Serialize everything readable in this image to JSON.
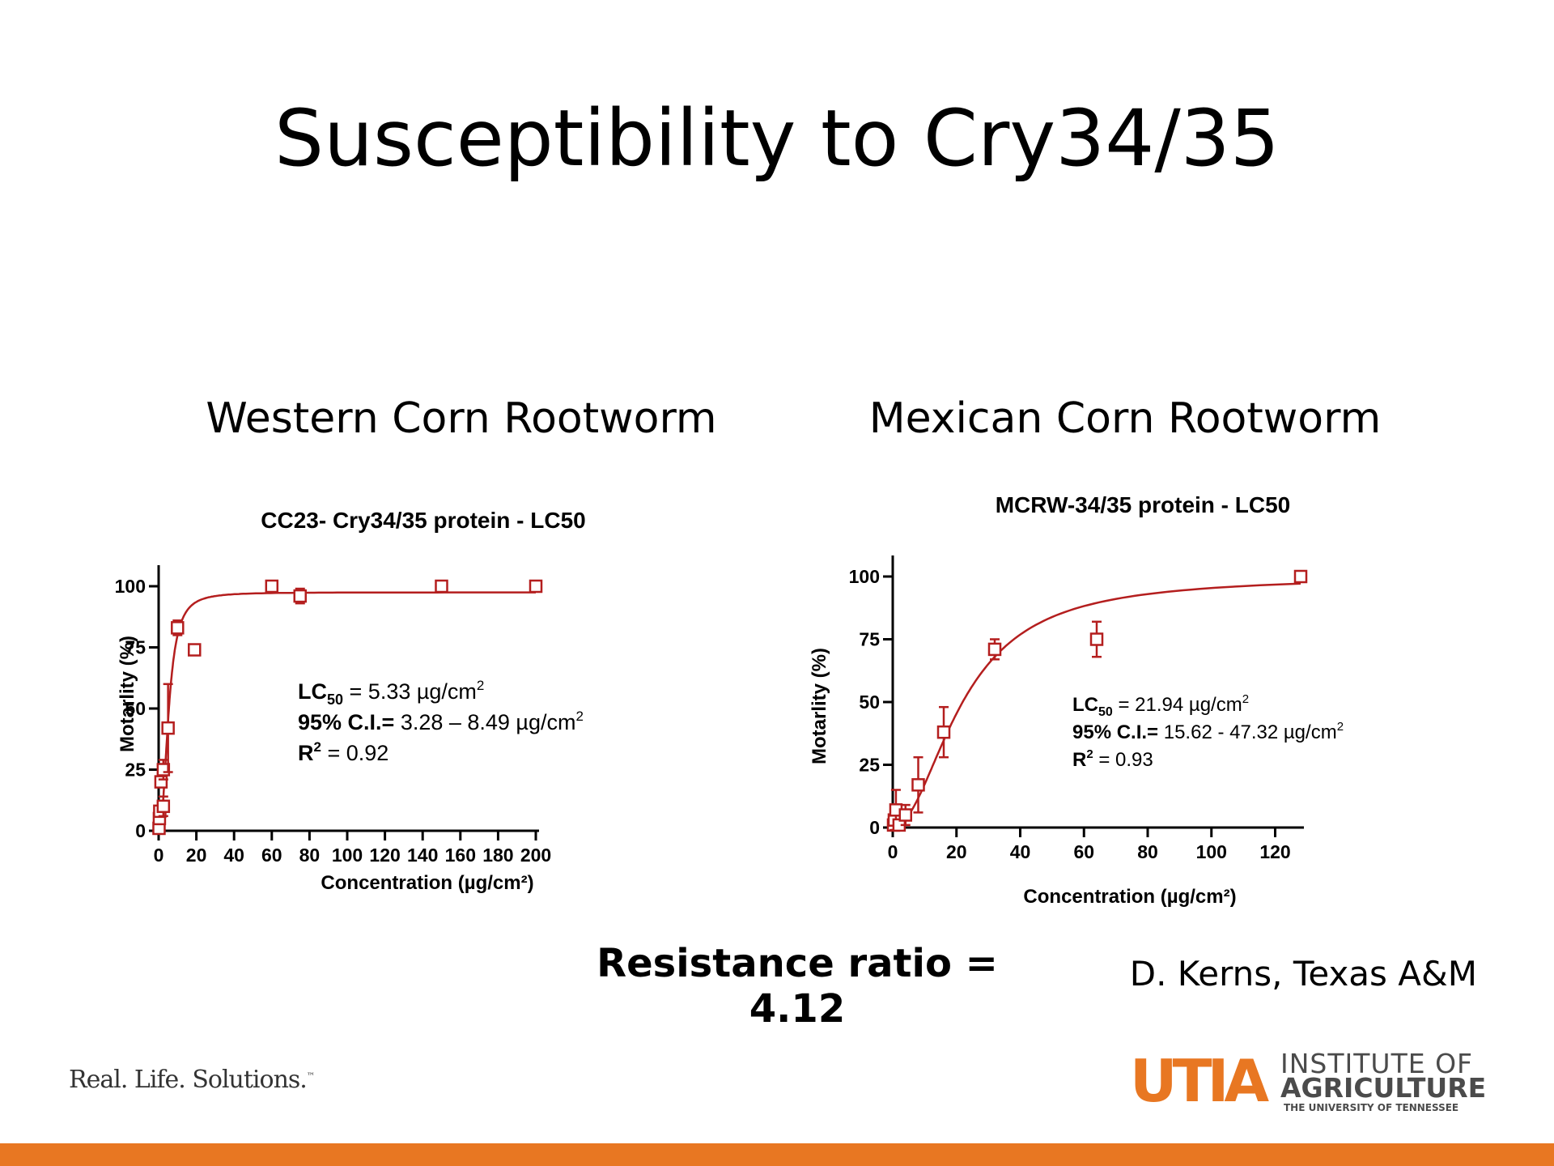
{
  "slide": {
    "title": "Susceptibility to Cry34/35",
    "left_subtitle": "Western Corn Rootworm",
    "right_subtitle": "Mexican Corn Rootworm",
    "resistance_ratio": "Resistance ratio = 4.12",
    "credit": "D. Kerns, Texas A&M",
    "tagline": "Real. Life. Solutions.",
    "tagline_mark": "™"
  },
  "logo": {
    "mark": "UTIA",
    "line1": "INSTITUTE OF",
    "line2": "AGRICULTURE",
    "line3": "THE UNIVERSITY OF TENNESSEE"
  },
  "colors": {
    "data_red": "#b41e1e",
    "brand_orange": "#e87722",
    "logo_gray": "#4b4b4b"
  },
  "chart_data": [
    {
      "type": "scatter",
      "title": "CC23- Cry34/35 protein - LC50",
      "xlabel": "Concentration (µg/cm²)",
      "ylabel": "Motarlity (%)",
      "xlim": [
        0,
        200
      ],
      "ylim": [
        0,
        100
      ],
      "xticks": [
        0,
        20,
        40,
        60,
        80,
        100,
        120,
        140,
        160,
        180,
        200
      ],
      "yticks": [
        0,
        25,
        50,
        75,
        100
      ],
      "points": [
        {
          "x": 0.2,
          "y": 1,
          "err": 0
        },
        {
          "x": 0.4,
          "y": 5,
          "err": 0
        },
        {
          "x": 0.6,
          "y": 8,
          "err": 0
        },
        {
          "x": 1.25,
          "y": 20,
          "err": 0
        },
        {
          "x": 2.5,
          "y": 10,
          "err": 4
        },
        {
          "x": 2.5,
          "y": 25,
          "err": 4
        },
        {
          "x": 5,
          "y": 42,
          "err": 18
        },
        {
          "x": 10,
          "y": 83,
          "err": 3
        },
        {
          "x": 19,
          "y": 74,
          "err": 0
        },
        {
          "x": 60,
          "y": 100,
          "err": 0
        },
        {
          "x": 75,
          "y": 96,
          "err": 3
        },
        {
          "x": 150,
          "y": 100,
          "err": 0
        },
        {
          "x": 200,
          "y": 100,
          "err": 0
        }
      ],
      "fit": {
        "model": "log-logistic",
        "top": 97.5,
        "ec50": 5.33,
        "hill": 2.4,
        "x_range": [
          0.05,
          200
        ]
      },
      "stats": {
        "lc_label": "LC",
        "lc_sub": "50",
        "lc_value": " = 5.33 µg/cm",
        "ci_label": "95% C.I.=",
        "ci_value": " 3.28 – 8.49 µg/cm",
        "r2_label": "R",
        "r2_value": " = 0.92",
        "sup": "2"
      }
    },
    {
      "type": "scatter",
      "title": "MCRW-34/35 protein - LC50",
      "xlabel": "Concentration (µg/cm²)",
      "ylabel": "Motarlity (%)",
      "xlim": [
        0,
        128
      ],
      "ylim": [
        0,
        100
      ],
      "xticks": [
        0,
        20,
        40,
        60,
        80,
        100,
        120
      ],
      "yticks": [
        0,
        25,
        50,
        75,
        100
      ],
      "points": [
        {
          "x": 0.25,
          "y": 1,
          "err": 2
        },
        {
          "x": 0.5,
          "y": 3,
          "err": 4
        },
        {
          "x": 1,
          "y": 7,
          "err": 8
        },
        {
          "x": 2,
          "y": 1,
          "err": 2
        },
        {
          "x": 4,
          "y": 5,
          "err": 4
        },
        {
          "x": 8,
          "y": 17,
          "err": 11
        },
        {
          "x": 16,
          "y": 38,
          "err": 10
        },
        {
          "x": 32,
          "y": 71,
          "err": 4
        },
        {
          "x": 64,
          "y": 75,
          "err": 7
        },
        {
          "x": 128,
          "y": 100,
          "err": 0
        }
      ],
      "fit": {
        "model": "log-logistic",
        "top": 100,
        "ec50": 21.94,
        "hill": 2.0,
        "x_range": [
          0.05,
          128
        ]
      },
      "stats": {
        "lc_label": "LC",
        "lc_sub": "50",
        "lc_value": " = 21.94 µg/cm",
        "ci_label": "95% C.I.=",
        "ci_value": " 15.62 - 47.32 µg/cm",
        "r2_label": "R",
        "r2_value": " = 0.93",
        "sup": "2"
      }
    }
  ]
}
